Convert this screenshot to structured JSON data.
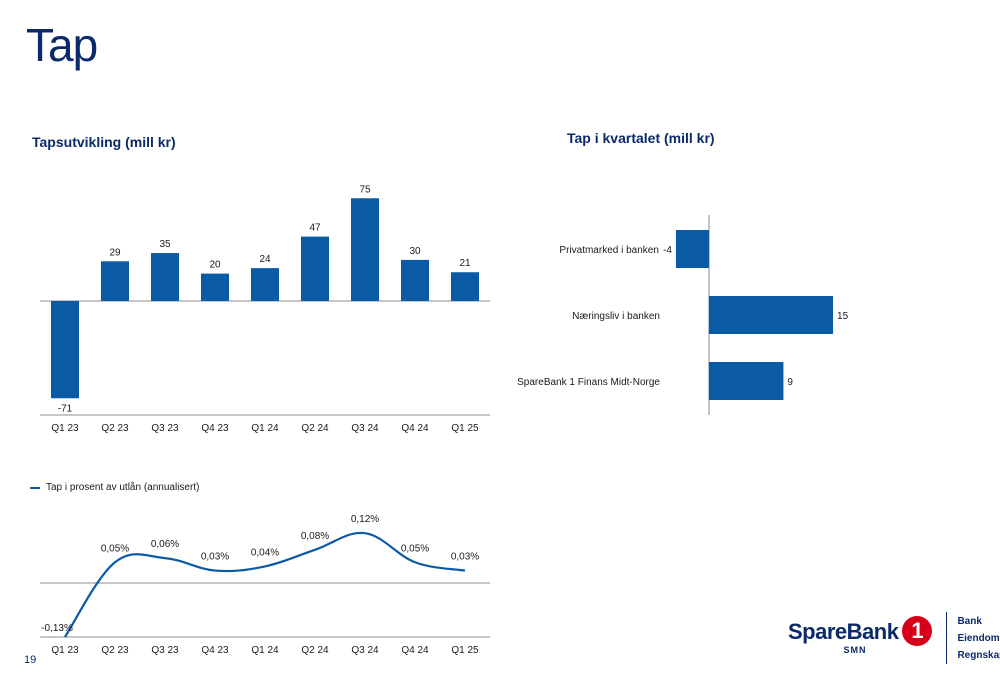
{
  "page": {
    "title": "Tap",
    "page_number": "19"
  },
  "colors": {
    "bar": "#0b5aa6",
    "line": "#0b5aa6",
    "axis": "#8c8c8c",
    "title": "#0b2a6b",
    "brand_red": "#d7001b"
  },
  "chart_data": [
    {
      "id": "losses-development",
      "type": "bar",
      "title": "Tapsutvikling (mill kr)",
      "categories": [
        "Q1 23",
        "Q2 23",
        "Q3 23",
        "Q4 23",
        "Q1 24",
        "Q2 24",
        "Q3 24",
        "Q4 24",
        "Q1 25"
      ],
      "values": [
        -71,
        29,
        35,
        20,
        24,
        47,
        75,
        30,
        21
      ],
      "value_labels": [
        "-71",
        "29",
        "35",
        "20",
        "24",
        "47",
        "75",
        "30",
        "21"
      ],
      "ylim": [
        -71,
        75
      ],
      "grid": false
    },
    {
      "id": "losses-quarter",
      "type": "bar",
      "orientation": "horizontal",
      "title": "Tap i kvartalet (mill kr)",
      "categories": [
        "Privatmarked i banken",
        "Næringsliv i banken",
        "SpareBank 1 Finans Midt-Norge"
      ],
      "values": [
        -4,
        15,
        9
      ],
      "value_labels": [
        "-4",
        "15",
        "9"
      ],
      "grid": false
    },
    {
      "id": "losses-percent",
      "type": "line",
      "categories": [
        "Q1 23",
        "Q2 23",
        "Q3 23",
        "Q4 23",
        "Q1 24",
        "Q2 24",
        "Q3 24",
        "Q4 24",
        "Q1 25"
      ],
      "series": [
        {
          "name": "Tap i prosent av utlån (annualisert)",
          "values": [
            -0.13,
            0.05,
            0.06,
            0.03,
            0.04,
            0.08,
            0.12,
            0.05,
            0.03
          ]
        }
      ],
      "value_labels": [
        "-0,13%",
        "0,05%",
        "0,06%",
        "0,03%",
        "0,04%",
        "0,08%",
        "0,12%",
        "0,05%",
        "0,03%"
      ],
      "legend_position": "top-left",
      "grid": false
    }
  ],
  "logo": {
    "word": "SpareBank",
    "badge": "1",
    "sub": "SMN",
    "lines": [
      "Bank",
      "Eiendom",
      "Regnskap"
    ]
  }
}
